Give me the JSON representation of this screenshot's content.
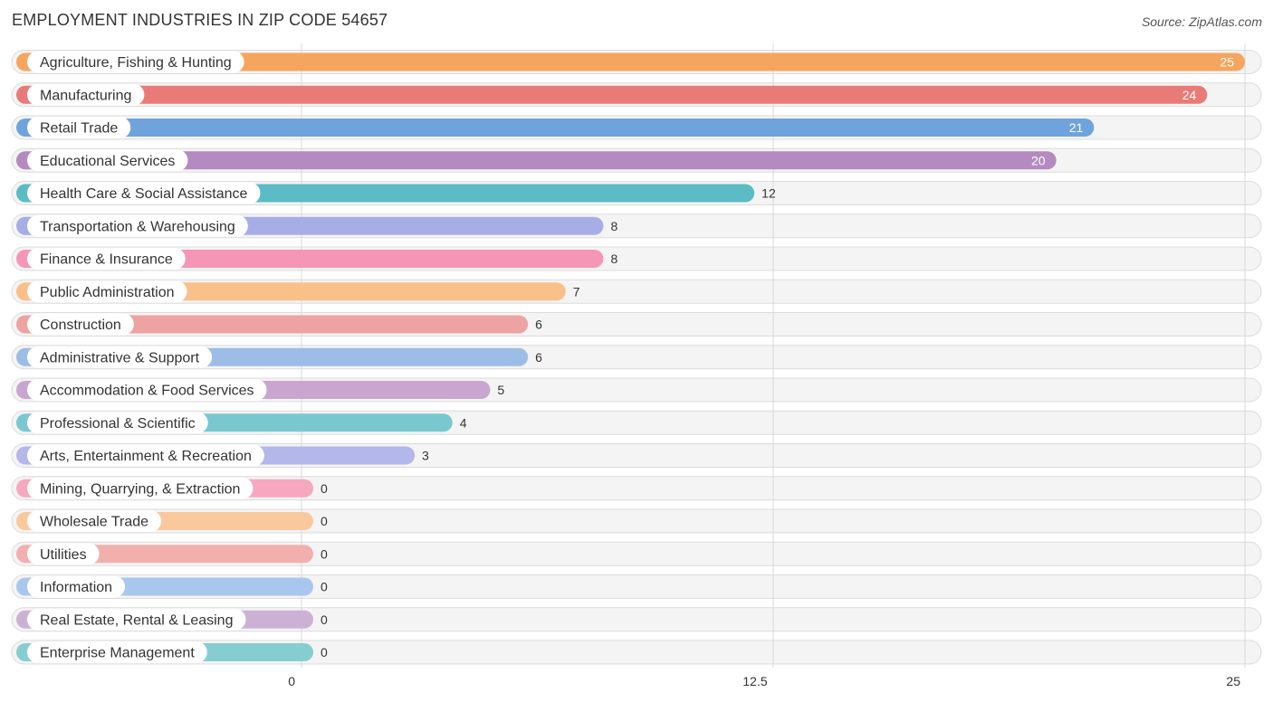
{
  "header": {
    "title": "EMPLOYMENT INDUSTRIES IN ZIP CODE 54657",
    "source": "Source: ZipAtlas.com"
  },
  "chart_data": {
    "type": "bar",
    "orientation": "horizontal",
    "title": "EMPLOYMENT INDUSTRIES IN ZIP CODE 54657",
    "xlabel": "",
    "ylabel": "",
    "xlim": [
      0,
      25
    ],
    "ticks": [
      0,
      12.5,
      25
    ],
    "tick_labels": [
      "0",
      "12.5",
      "25"
    ],
    "grid": true,
    "categories": [
      "Agriculture, Fishing & Hunting",
      "Manufacturing",
      "Retail Trade",
      "Educational Services",
      "Health Care & Social Assistance",
      "Transportation & Warehousing",
      "Finance & Insurance",
      "Public Administration",
      "Construction",
      "Administrative & Support",
      "Accommodation & Food Services",
      "Professional & Scientific",
      "Arts, Entertainment & Recreation",
      "Mining, Quarrying, & Extraction",
      "Wholesale Trade",
      "Utilities",
      "Information",
      "Real Estate, Rental & Leasing",
      "Enterprise Management"
    ],
    "values": [
      25,
      24,
      21,
      20,
      12,
      8,
      8,
      7,
      6,
      6,
      5,
      4,
      3,
      0,
      0,
      0,
      0,
      0,
      0
    ],
    "colors": [
      "#f6a55e",
      "#e87b78",
      "#6fa3dc",
      "#b48ac0",
      "#5bbcc6",
      "#a7aee6",
      "#f696b6",
      "#f9c08a",
      "#eda3a2",
      "#9bbde6",
      "#c8a6cf",
      "#7ac8cf",
      "#b3b7e9",
      "#f7a8c1",
      "#f9c99d",
      "#f1b0ae",
      "#a9c7ee",
      "#cdb1d5",
      "#86cdd2"
    ]
  }
}
